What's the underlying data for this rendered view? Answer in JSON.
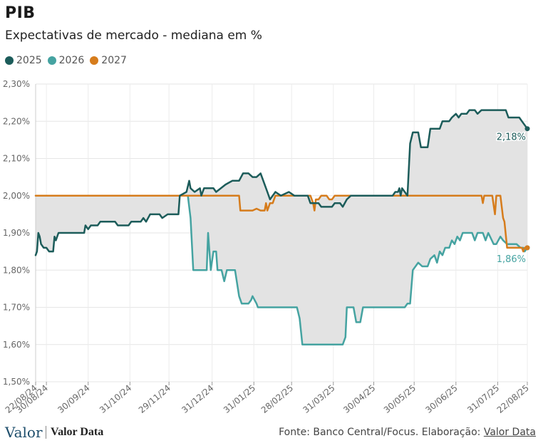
{
  "header": {
    "title": "PIB",
    "subtitle": "Expectativas de mercado - mediana em %"
  },
  "legend": [
    {
      "label": "2025",
      "color": "#1c5c5a"
    },
    {
      "label": "2026",
      "color": "#45a3a1"
    },
    {
      "label": "2027",
      "color": "#d67c1c"
    }
  ],
  "footer": {
    "logo_valor": "Valor",
    "logo_valordata": "Valor Data",
    "source_prefix": "Fonte: Banco Central/Focus. Elaboração: ",
    "source_link": "Valor Data"
  },
  "chart_data": {
    "type": "line",
    "x_start": "2024-08-22",
    "x_end": "2025-08-22",
    "ylim": [
      1.5,
      2.3
    ],
    "yticks": [
      1.5,
      1.6,
      1.7,
      1.8,
      1.9,
      2.0,
      2.1,
      2.2,
      2.3
    ],
    "ytick_labels": [
      "1,50%",
      "1,60%",
      "1,70%",
      "1,80%",
      "1,90%",
      "2,00%",
      "2,10%",
      "2,20%",
      "2,30%"
    ],
    "xticks": [
      "2024-08-22",
      "2024-08-30",
      "2024-09-30",
      "2024-10-31",
      "2024-11-29",
      "2024-12-31",
      "2025-01-31",
      "2025-02-28",
      "2025-03-31",
      "2025-04-30",
      "2025-05-30",
      "2025-06-30",
      "2025-07-31",
      "2025-08-22"
    ],
    "xtick_labels": [
      "22/08/24",
      "30/08/24",
      "30/09/24",
      "31/10/24",
      "29/11/24",
      "31/12/24",
      "31/01/25",
      "28/02/25",
      "31/03/25",
      "30/04/25",
      "30/05/25",
      "30/06/25",
      "31/07/25",
      "22/08/25"
    ],
    "grid": true,
    "shaded_range_between_series": true,
    "series": [
      {
        "name": "2025",
        "color": "#1c5c5a",
        "end_label": "2,18%",
        "points": [
          [
            "2024-08-22",
            1.84
          ],
          [
            "2024-08-23",
            1.85
          ],
          [
            "2024-08-24",
            1.9
          ],
          [
            "2024-08-25",
            1.89
          ],
          [
            "2024-08-26",
            1.87
          ],
          [
            "2024-08-28",
            1.86
          ],
          [
            "2024-08-30",
            1.86
          ],
          [
            "2024-09-01",
            1.85
          ],
          [
            "2024-09-04",
            1.85
          ],
          [
            "2024-09-05",
            1.89
          ],
          [
            "2024-09-06",
            1.88
          ],
          [
            "2024-09-08",
            1.9
          ],
          [
            "2024-09-27",
            1.9
          ],
          [
            "2024-09-28",
            1.92
          ],
          [
            "2024-09-30",
            1.91
          ],
          [
            "2024-10-02",
            1.92
          ],
          [
            "2024-10-07",
            1.92
          ],
          [
            "2024-10-09",
            1.93
          ],
          [
            "2024-10-20",
            1.93
          ],
          [
            "2024-10-22",
            1.92
          ],
          [
            "2024-10-30",
            1.92
          ],
          [
            "2024-11-01",
            1.93
          ],
          [
            "2024-11-08",
            1.93
          ],
          [
            "2024-11-10",
            1.94
          ],
          [
            "2024-11-12",
            1.93
          ],
          [
            "2024-11-15",
            1.95
          ],
          [
            "2024-11-22",
            1.95
          ],
          [
            "2024-11-24",
            1.94
          ],
          [
            "2024-11-28",
            1.95
          ],
          [
            "2024-12-06",
            1.95
          ],
          [
            "2024-12-07",
            2.0
          ],
          [
            "2024-12-12",
            2.01
          ],
          [
            "2024-12-14",
            2.04
          ],
          [
            "2024-12-15",
            2.02
          ],
          [
            "2024-12-18",
            2.01
          ],
          [
            "2024-12-22",
            2.02
          ],
          [
            "2024-12-23",
            2.0
          ],
          [
            "2024-12-25",
            2.02
          ],
          [
            "2025-01-01",
            2.02
          ],
          [
            "2025-01-03",
            2.01
          ],
          [
            "2025-01-10",
            2.03
          ],
          [
            "2025-01-15",
            2.04
          ],
          [
            "2025-01-20",
            2.04
          ],
          [
            "2025-01-23",
            2.06
          ],
          [
            "2025-01-27",
            2.06
          ],
          [
            "2025-01-30",
            2.05
          ],
          [
            "2025-02-02",
            2.05
          ],
          [
            "2025-02-05",
            2.06
          ],
          [
            "2025-02-08",
            2.03
          ],
          [
            "2025-02-10",
            2.01
          ],
          [
            "2025-02-12",
            1.99
          ],
          [
            "2025-02-16",
            2.01
          ],
          [
            "2025-02-20",
            2.0
          ],
          [
            "2025-02-26",
            2.01
          ],
          [
            "2025-03-02",
            2.0
          ],
          [
            "2025-03-12",
            2.0
          ],
          [
            "2025-03-14",
            1.98
          ],
          [
            "2025-03-20",
            1.98
          ],
          [
            "2025-03-22",
            1.97
          ],
          [
            "2025-03-30",
            1.97
          ],
          [
            "2025-04-01",
            1.98
          ],
          [
            "2025-04-05",
            1.98
          ],
          [
            "2025-04-07",
            1.97
          ],
          [
            "2025-04-10",
            1.99
          ],
          [
            "2025-04-13",
            2.0
          ],
          [
            "2025-05-14",
            2.0
          ],
          [
            "2025-05-16",
            2.01
          ],
          [
            "2025-05-18",
            2.01
          ],
          [
            "2025-05-19",
            2.02
          ],
          [
            "2025-05-20",
            2.0
          ],
          [
            "2025-05-21",
            2.02
          ],
          [
            "2025-05-23",
            2.01
          ],
          [
            "2025-05-25",
            2.0
          ],
          [
            "2025-05-27",
            2.14
          ],
          [
            "2025-05-29",
            2.17
          ],
          [
            "2025-06-02",
            2.17
          ],
          [
            "2025-06-04",
            2.13
          ],
          [
            "2025-06-09",
            2.13
          ],
          [
            "2025-06-11",
            2.18
          ],
          [
            "2025-06-18",
            2.18
          ],
          [
            "2025-06-20",
            2.2
          ],
          [
            "2025-06-25",
            2.2
          ],
          [
            "2025-06-27",
            2.21
          ],
          [
            "2025-06-30",
            2.22
          ],
          [
            "2025-07-02",
            2.21
          ],
          [
            "2025-07-04",
            2.22
          ],
          [
            "2025-07-08",
            2.22
          ],
          [
            "2025-07-10",
            2.23
          ],
          [
            "2025-07-14",
            2.23
          ],
          [
            "2025-07-16",
            2.22
          ],
          [
            "2025-07-19",
            2.23
          ],
          [
            "2025-08-06",
            2.23
          ],
          [
            "2025-08-08",
            2.21
          ],
          [
            "2025-08-16",
            2.21
          ],
          [
            "2025-08-18",
            2.2
          ],
          [
            "2025-08-22",
            2.18
          ]
        ]
      },
      {
        "name": "2026",
        "color": "#45a3a1",
        "end_label": "1,86%",
        "points": [
          [
            "2024-12-10",
            2.0
          ],
          [
            "2024-12-13",
            2.0
          ],
          [
            "2024-12-15",
            1.94
          ],
          [
            "2024-12-17",
            1.8
          ],
          [
            "2024-12-27",
            1.8
          ],
          [
            "2024-12-28",
            1.9
          ],
          [
            "2024-12-30",
            1.8
          ],
          [
            "2025-01-01",
            1.85
          ],
          [
            "2025-01-03",
            1.85
          ],
          [
            "2025-01-04",
            1.8
          ],
          [
            "2025-01-07",
            1.8
          ],
          [
            "2025-01-09",
            1.77
          ],
          [
            "2025-01-11",
            1.8
          ],
          [
            "2025-01-17",
            1.8
          ],
          [
            "2025-01-20",
            1.73
          ],
          [
            "2025-01-22",
            1.71
          ],
          [
            "2025-01-27",
            1.71
          ],
          [
            "2025-01-29",
            1.72
          ],
          [
            "2025-01-30",
            1.73
          ],
          [
            "2025-02-02",
            1.71
          ],
          [
            "2025-02-03",
            1.7
          ],
          [
            "2025-03-04",
            1.7
          ],
          [
            "2025-03-06",
            1.67
          ],
          [
            "2025-03-08",
            1.6
          ],
          [
            "2025-04-07",
            1.6
          ],
          [
            "2025-04-09",
            1.62
          ],
          [
            "2025-04-10",
            1.7
          ],
          [
            "2025-04-15",
            1.7
          ],
          [
            "2025-04-17",
            1.66
          ],
          [
            "2025-04-20",
            1.66
          ],
          [
            "2025-04-22",
            1.7
          ],
          [
            "2025-05-10",
            1.7
          ],
          [
            "2025-05-12",
            1.7
          ],
          [
            "2025-05-15",
            1.7
          ],
          [
            "2025-05-23",
            1.7
          ],
          [
            "2025-05-25",
            1.71
          ],
          [
            "2025-05-27",
            1.71
          ],
          [
            "2025-05-29",
            1.8
          ],
          [
            "2025-06-02",
            1.82
          ],
          [
            "2025-06-05",
            1.81
          ],
          [
            "2025-06-09",
            1.81
          ],
          [
            "2025-06-11",
            1.83
          ],
          [
            "2025-06-14",
            1.84
          ],
          [
            "2025-06-16",
            1.82
          ],
          [
            "2025-06-18",
            1.85
          ],
          [
            "2025-06-20",
            1.84
          ],
          [
            "2025-06-22",
            1.86
          ],
          [
            "2025-06-25",
            1.86
          ],
          [
            "2025-06-27",
            1.88
          ],
          [
            "2025-06-29",
            1.87
          ],
          [
            "2025-07-01",
            1.89
          ],
          [
            "2025-07-03",
            1.88
          ],
          [
            "2025-07-05",
            1.9
          ],
          [
            "2025-07-12",
            1.9
          ],
          [
            "2025-07-14",
            1.88
          ],
          [
            "2025-07-16",
            1.9
          ],
          [
            "2025-07-20",
            1.9
          ],
          [
            "2025-07-22",
            1.88
          ],
          [
            "2025-07-24",
            1.9
          ],
          [
            "2025-07-28",
            1.87
          ],
          [
            "2025-07-30",
            1.87
          ],
          [
            "2025-08-02",
            1.89
          ],
          [
            "2025-08-04",
            1.88
          ],
          [
            "2025-08-07",
            1.87
          ],
          [
            "2025-08-10",
            1.87
          ],
          [
            "2025-08-14",
            1.87
          ],
          [
            "2025-08-17",
            1.86
          ],
          [
            "2025-08-19",
            1.86
          ],
          [
            "2025-08-20",
            1.85
          ],
          [
            "2025-08-22",
            1.86
          ]
        ]
      },
      {
        "name": "2027",
        "color": "#d67c1c",
        "points": [
          [
            "2024-08-22",
            2.0
          ],
          [
            "2025-01-20",
            2.0
          ],
          [
            "2025-01-21",
            1.96
          ],
          [
            "2025-01-30",
            1.96
          ],
          [
            "2025-02-02",
            1.965
          ],
          [
            "2025-02-05",
            1.96
          ],
          [
            "2025-02-08",
            1.96
          ],
          [
            "2025-02-09",
            1.98
          ],
          [
            "2025-02-10",
            1.96
          ],
          [
            "2025-02-12",
            1.98
          ],
          [
            "2025-02-14",
            1.98
          ],
          [
            "2025-02-16",
            2.0
          ],
          [
            "2025-03-14",
            2.0
          ],
          [
            "2025-03-16",
            1.98
          ],
          [
            "2025-03-17",
            1.96
          ],
          [
            "2025-03-18",
            1.99
          ],
          [
            "2025-03-20",
            1.99
          ],
          [
            "2025-03-22",
            2.0
          ],
          [
            "2025-03-26",
            2.0
          ],
          [
            "2025-03-28",
            1.99
          ],
          [
            "2025-03-30",
            1.99
          ],
          [
            "2025-04-01",
            2.0
          ],
          [
            "2025-07-19",
            2.0
          ],
          [
            "2025-07-20",
            1.98
          ],
          [
            "2025-07-21",
            2.0
          ],
          [
            "2025-07-27",
            2.0
          ],
          [
            "2025-07-29",
            1.95
          ],
          [
            "2025-07-30",
            2.0
          ],
          [
            "2025-08-02",
            2.0
          ],
          [
            "2025-08-04",
            1.94
          ],
          [
            "2025-08-05",
            1.93
          ],
          [
            "2025-08-07",
            1.86
          ],
          [
            "2025-08-18",
            1.86
          ],
          [
            "2025-08-19",
            1.85
          ],
          [
            "2025-08-20",
            1.86
          ],
          [
            "2025-08-22",
            1.86
          ]
        ]
      }
    ]
  }
}
